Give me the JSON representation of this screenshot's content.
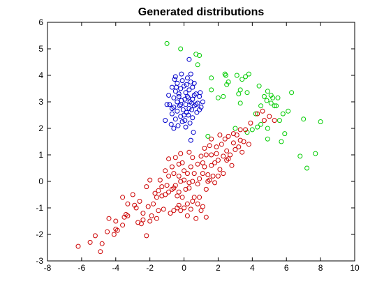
{
  "chart_data": {
    "type": "scatter",
    "title": "Generated distributions",
    "xlabel": "",
    "ylabel": "",
    "xlim": [
      -8,
      10
    ],
    "ylim": [
      -3,
      6
    ],
    "xticks": [
      -8,
      -6,
      -4,
      -2,
      0,
      2,
      4,
      6,
      8,
      10
    ],
    "yticks": [
      -3,
      -2,
      -1,
      0,
      1,
      2,
      3,
      4,
      5,
      6
    ],
    "grid": false,
    "marker": "circle-open",
    "series": [
      {
        "color": "#0000cc",
        "points": [
          [
            0.3,
            4.6
          ],
          [
            0.4,
            4.05
          ],
          [
            -0.15,
            4.05
          ],
          [
            -0.5,
            3.95
          ],
          [
            -0.55,
            3.85
          ],
          [
            -0.1,
            3.8
          ],
          [
            0.4,
            3.75
          ],
          [
            0.6,
            3.7
          ],
          [
            -0.4,
            3.7
          ],
          [
            0.15,
            3.65
          ],
          [
            0.0,
            3.6
          ],
          [
            0.5,
            3.55
          ],
          [
            -0.7,
            3.55
          ],
          [
            -0.2,
            3.5
          ],
          [
            0.3,
            3.45
          ],
          [
            -0.5,
            3.4
          ],
          [
            0.1,
            3.35
          ],
          [
            0.7,
            3.3
          ],
          [
            -0.9,
            3.25
          ],
          [
            -0.3,
            3.2
          ],
          [
            0.2,
            3.2
          ],
          [
            0.9,
            3.2
          ],
          [
            -0.6,
            3.15
          ],
          [
            0.05,
            3.1
          ],
          [
            0.5,
            3.1
          ],
          [
            -0.15,
            3.05
          ],
          [
            0.35,
            3.0
          ],
          [
            -0.4,
            3.0
          ],
          [
            0.8,
            2.95
          ],
          [
            -0.85,
            2.9
          ],
          [
            0.1,
            2.9
          ],
          [
            0.6,
            2.85
          ],
          [
            -0.25,
            2.85
          ],
          [
            1.0,
            2.8
          ],
          [
            -0.6,
            2.8
          ],
          [
            0.3,
            2.75
          ],
          [
            -0.05,
            2.7
          ],
          [
            0.45,
            2.7
          ],
          [
            -0.4,
            2.65
          ],
          [
            0.75,
            2.6
          ],
          [
            0.15,
            2.6
          ],
          [
            -0.7,
            2.55
          ],
          [
            0.25,
            2.5
          ],
          [
            -0.2,
            2.45
          ],
          [
            0.5,
            2.4
          ],
          [
            -0.5,
            2.35
          ],
          [
            0.05,
            2.3
          ],
          [
            -0.1,
            2.25
          ],
          [
            0.35,
            2.2
          ],
          [
            -0.75,
            2.15
          ],
          [
            -0.35,
            2.1
          ],
          [
            0.1,
            2.05
          ],
          [
            -0.6,
            2.0
          ],
          [
            0.55,
            1.85
          ],
          [
            0.4,
            1.55
          ],
          [
            -1.1,
            2.3
          ],
          [
            1.1,
            3.0
          ],
          [
            -1.0,
            2.9
          ],
          [
            0.9,
            2.7
          ],
          [
            0.7,
            2.9
          ],
          [
            -0.3,
            3.3
          ],
          [
            0.2,
            3.9
          ],
          [
            -0.2,
            2.9
          ],
          [
            0.6,
            3.25
          ],
          [
            -0.45,
            3.55
          ],
          [
            0.95,
            3.35
          ],
          [
            0.25,
            3.15
          ],
          [
            -0.7,
            2.75
          ],
          [
            0.45,
            2.95
          ],
          [
            0.0,
            2.5
          ]
        ]
      },
      {
        "color": "#00cc00",
        "points": [
          [
            -1.0,
            5.2
          ],
          [
            -0.2,
            5.0
          ],
          [
            0.7,
            4.8
          ],
          [
            0.9,
            4.75
          ],
          [
            0.8,
            4.4
          ],
          [
            2.4,
            4.05
          ],
          [
            2.45,
            4.0
          ],
          [
            3.8,
            4.05
          ],
          [
            3.1,
            4.0
          ],
          [
            3.6,
            3.95
          ],
          [
            1.6,
            3.9
          ],
          [
            3.4,
            3.85
          ],
          [
            2.6,
            3.75
          ],
          [
            2.5,
            3.65
          ],
          [
            4.4,
            3.6
          ],
          [
            1.6,
            3.45
          ],
          [
            3.3,
            3.45
          ],
          [
            3.7,
            3.35
          ],
          [
            4.9,
            3.4
          ],
          [
            3.2,
            3.3
          ],
          [
            6.3,
            3.35
          ],
          [
            2.3,
            3.2
          ],
          [
            5.1,
            3.25
          ],
          [
            4.7,
            3.2
          ],
          [
            2.0,
            3.15
          ],
          [
            5.2,
            3.15
          ],
          [
            4.85,
            3.05
          ],
          [
            5.5,
            3.15
          ],
          [
            5.1,
            2.95
          ],
          [
            3.3,
            2.95
          ],
          [
            5.4,
            2.85
          ],
          [
            5.3,
            2.85
          ],
          [
            4.5,
            2.85
          ],
          [
            6.1,
            2.65
          ],
          [
            5.8,
            2.55
          ],
          [
            4.2,
            2.55
          ],
          [
            7.0,
            2.35
          ],
          [
            5.6,
            2.3
          ],
          [
            4.5,
            2.15
          ],
          [
            8.0,
            2.25
          ],
          [
            4.3,
            2.05
          ],
          [
            3.0,
            2.0
          ],
          [
            4.0,
            1.95
          ],
          [
            4.9,
            2.0
          ],
          [
            3.7,
            1.85
          ],
          [
            5.9,
            1.8
          ],
          [
            4.9,
            1.6
          ],
          [
            5.7,
            1.5
          ],
          [
            1.4,
            1.7
          ],
          [
            7.7,
            1.05
          ],
          [
            6.8,
            0.95
          ],
          [
            7.2,
            0.5
          ]
        ]
      },
      {
        "color": "#cc0000",
        "points": [
          [
            -6.2,
            -2.45
          ],
          [
            -4.9,
            -2.65
          ],
          [
            -5.2,
            -2.05
          ],
          [
            -4.8,
            -2.35
          ],
          [
            -4.1,
            -2.0
          ],
          [
            -3.9,
            -1.85
          ],
          [
            -4.0,
            -1.8
          ],
          [
            -3.6,
            -1.65
          ],
          [
            -4.4,
            -1.4
          ],
          [
            -4.0,
            -1.5
          ],
          [
            -3.3,
            -1.3
          ],
          [
            -3.4,
            -1.25
          ],
          [
            -2.7,
            -1.55
          ],
          [
            -2.5,
            -1.6
          ],
          [
            -2.2,
            -2.05
          ],
          [
            -2.4,
            -1.2
          ],
          [
            -1.9,
            -1.3
          ],
          [
            -1.5,
            -1.1
          ],
          [
            -1.2,
            -1.05
          ],
          [
            -0.6,
            -1.1
          ],
          [
            -0.4,
            -1.0
          ],
          [
            -2.9,
            -0.9
          ],
          [
            -2.6,
            -0.75
          ],
          [
            -3.3,
            -0.85
          ],
          [
            -3.6,
            -0.6
          ],
          [
            -3.0,
            -0.5
          ],
          [
            -2.1,
            -0.95
          ],
          [
            -1.8,
            -0.85
          ],
          [
            -1.6,
            -0.6
          ],
          [
            -1.3,
            -0.55
          ],
          [
            -1.1,
            -0.5
          ],
          [
            -0.9,
            -0.4
          ],
          [
            -0.7,
            -0.3
          ],
          [
            -2.2,
            -0.2
          ],
          [
            -1.5,
            -0.35
          ],
          [
            -1.0,
            -0.15
          ],
          [
            -0.5,
            -0.15
          ],
          [
            -0.3,
            -0.4
          ],
          [
            0.1,
            -0.3
          ],
          [
            0.3,
            -0.25
          ],
          [
            0.6,
            -0.6
          ],
          [
            0.9,
            -0.6
          ],
          [
            0.5,
            -0.75
          ],
          [
            0.8,
            -0.85
          ],
          [
            0.4,
            -1.05
          ],
          [
            0.0,
            -1.0
          ],
          [
            -0.2,
            -1.1
          ],
          [
            0.2,
            -1.3
          ],
          [
            -0.8,
            -1.2
          ],
          [
            -0.3,
            -0.9
          ],
          [
            0.7,
            -1.4
          ],
          [
            1.3,
            -1.35
          ],
          [
            1.1,
            -0.95
          ],
          [
            1.0,
            -1.1
          ],
          [
            -0.6,
            -0.25
          ],
          [
            -1.4,
            0.05
          ],
          [
            -0.2,
            0.0
          ],
          [
            0.0,
            0.05
          ],
          [
            0.3,
            -0.05
          ],
          [
            0.5,
            0.0
          ],
          [
            0.8,
            -0.1
          ],
          [
            1.3,
            -0.3
          ],
          [
            1.4,
            0.0
          ],
          [
            1.5,
            0.05
          ],
          [
            1.8,
            -0.05
          ],
          [
            -0.9,
            0.2
          ],
          [
            -0.6,
            0.3
          ],
          [
            -0.3,
            0.2
          ],
          [
            0.2,
            0.3
          ],
          [
            0.6,
            0.3
          ],
          [
            1.1,
            0.3
          ],
          [
            1.4,
            0.25
          ],
          [
            2.3,
            0.3
          ],
          [
            2.1,
            0.45
          ],
          [
            -0.7,
            0.55
          ],
          [
            -0.3,
            0.65
          ],
          [
            -0.1,
            0.7
          ],
          [
            0.4,
            0.55
          ],
          [
            0.8,
            0.65
          ],
          [
            1.1,
            0.7
          ],
          [
            1.6,
            0.6
          ],
          [
            1.8,
            0.7
          ],
          [
            2.0,
            0.8
          ],
          [
            2.5,
            0.8
          ],
          [
            2.3,
            0.95
          ],
          [
            2.6,
            0.85
          ],
          [
            -0.9,
            0.85
          ],
          [
            -0.5,
            0.9
          ],
          [
            -0.2,
            1.05
          ],
          [
            0.5,
            0.9
          ],
          [
            1.0,
            0.95
          ],
          [
            1.3,
            1.0
          ],
          [
            1.9,
            1.05
          ],
          [
            2.5,
            1.15
          ],
          [
            3.0,
            1.2
          ],
          [
            3.2,
            1.3
          ],
          [
            2.9,
            1.45
          ],
          [
            3.3,
            1.55
          ],
          [
            3.5,
            1.5
          ],
          [
            3.8,
            1.4
          ],
          [
            1.2,
            1.25
          ],
          [
            1.5,
            1.35
          ],
          [
            1.9,
            1.3
          ],
          [
            2.2,
            1.4
          ],
          [
            2.4,
            1.6
          ],
          [
            2.6,
            1.7
          ],
          [
            2.1,
            1.75
          ],
          [
            1.6,
            1.6
          ],
          [
            2.9,
            1.8
          ],
          [
            3.3,
            1.95
          ],
          [
            3.6,
            1.95
          ],
          [
            3.1,
            1.75
          ],
          [
            3.9,
            2.2
          ],
          [
            4.3,
            2.55
          ],
          [
            4.6,
            2.65
          ],
          [
            5.0,
            2.45
          ],
          [
            5.3,
            2.3
          ],
          [
            0.3,
            1.1
          ],
          [
            -1.1,
            0.4
          ],
          [
            -2.0,
            0.05
          ],
          [
            -1.7,
            -0.45
          ],
          [
            -2.8,
            -1.0
          ],
          [
            -3.5,
            -1.35
          ],
          [
            -4.5,
            -1.9
          ],
          [
            -5.5,
            -2.3
          ],
          [
            -2.0,
            -1.5
          ],
          [
            -1.6,
            -1.4
          ],
          [
            -0.1,
            -0.6
          ],
          [
            0.2,
            -0.85
          ],
          [
            2.0,
            0.2
          ],
          [
            1.7,
            0.2
          ],
          [
            2.8,
            0.6
          ],
          [
            3.4,
            1.1
          ],
          [
            -0.4,
            -0.55
          ],
          [
            0.9,
            0.1
          ],
          [
            1.2,
            0.55
          ],
          [
            2.7,
            1.0
          ],
          [
            4.7,
            2.3
          ],
          [
            0.0,
            0.4
          ],
          [
            -1.3,
            -0.2
          ],
          [
            -2.4,
            -1.45
          ],
          [
            1.6,
            1.0
          ]
        ]
      }
    ]
  }
}
